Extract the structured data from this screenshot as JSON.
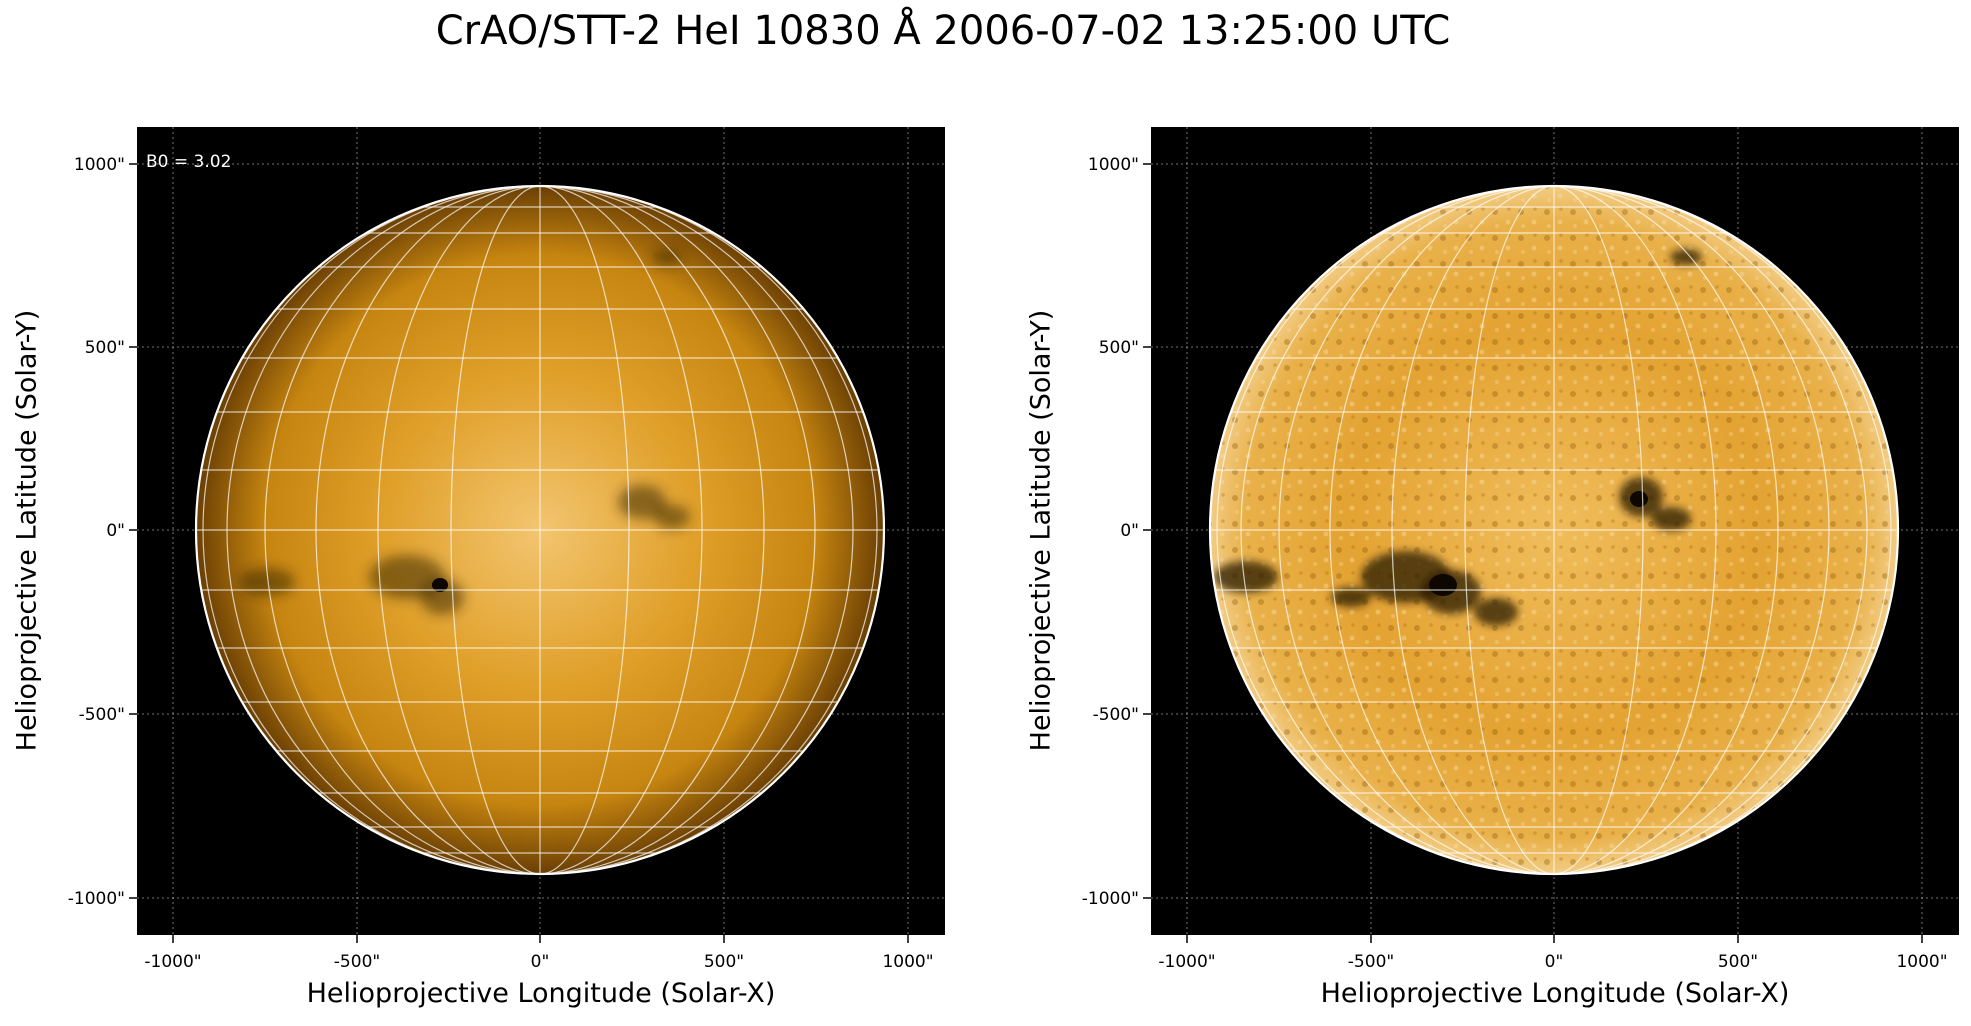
{
  "figure": {
    "title": "CrAO/STT-2 HeI 10830 Å 2006-07-02 13:25:00 UTC"
  },
  "panels": [
    {
      "id": "left",
      "ylabel": "Helioprojective Latitude (Solar-Y)",
      "xlabel": "Helioprojective Longitude (Solar-X)",
      "annotation": "B0 = 3.02",
      "xticks": [
        "-1000\"",
        "-500\"",
        "0\"",
        "500\"",
        "1000\""
      ],
      "yticks": [
        "1000\"",
        "500\"",
        "0\"",
        "-500\"",
        "-1000\""
      ],
      "style": "limb-darkened"
    },
    {
      "id": "right",
      "ylabel": "Helioprojective Latitude (Solar-Y)",
      "xlabel": "Helioprojective Longitude (Solar-X)",
      "annotation": "",
      "xticks": [
        "-1000\"",
        "-500\"",
        "0\"",
        "500\"",
        "1000\""
      ],
      "yticks": [
        "1000\"",
        "500\"",
        "0\"",
        "-500\"",
        "-1000\""
      ],
      "style": "enhanced"
    }
  ],
  "colors": {
    "disk_center": "#f5c873",
    "disk_mid": "#d4900f",
    "disk_limb": "#7a4b05",
    "background": "#000000",
    "grid": "#ffffff"
  }
}
